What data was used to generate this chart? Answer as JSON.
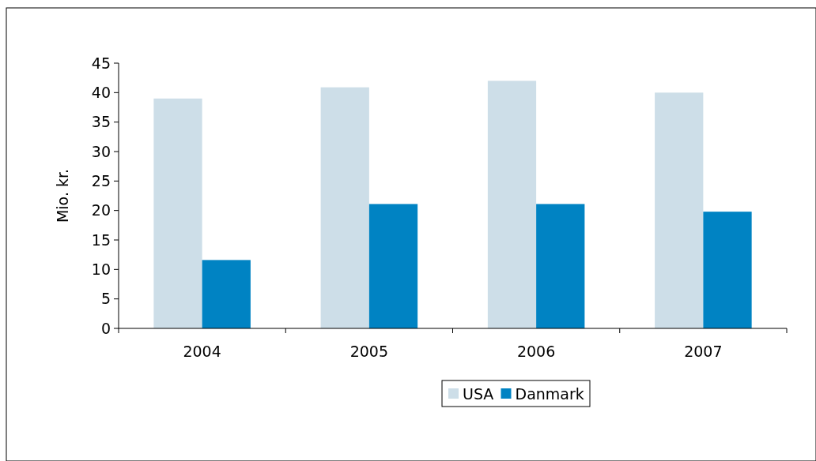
{
  "chart_data": {
    "type": "bar",
    "ylabel": "Mio. kr.",
    "categories": [
      "2004",
      "2005",
      "2006",
      "2007"
    ],
    "series": [
      {
        "name": "USA",
        "color": "#cddee8",
        "values": [
          39,
          40.9,
          42,
          40
        ]
      },
      {
        "name": "Danmark",
        "color": "#0083c3",
        "values": [
          11.6,
          21.1,
          21.1,
          19.8
        ]
      }
    ],
    "ylim": [
      0,
      45
    ],
    "yticks": [
      0,
      5,
      10,
      15,
      20,
      25,
      30,
      35,
      40,
      45
    ],
    "grid": false,
    "legend": "bottom"
  }
}
